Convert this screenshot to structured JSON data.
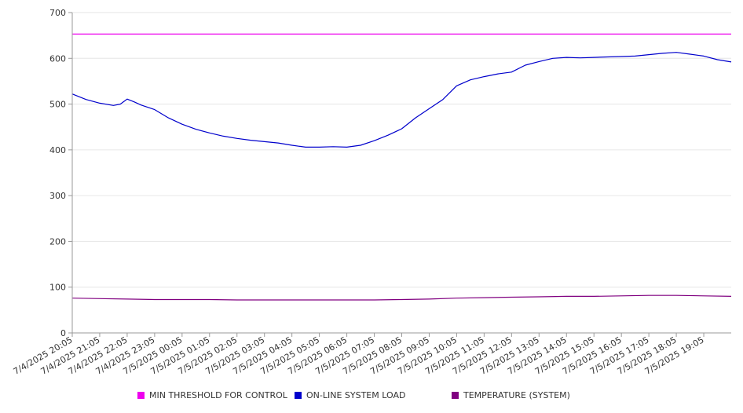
{
  "chart_data": {
    "type": "line",
    "ylim": [
      0,
      700
    ],
    "yticks": [
      0,
      100,
      200,
      300,
      400,
      500,
      600,
      700
    ],
    "grid": true,
    "legend_position": "bottom",
    "x_tick_labels": [
      "7/4/2025 20:05",
      "7/4/2025 21:05",
      "7/4/2025 22:05",
      "7/4/2025 23:05",
      "7/5/2025 00:05",
      "7/5/2025 01:05",
      "7/5/2025 02:05",
      "7/5/2025 03:05",
      "7/5/2025 04:05",
      "7/5/2025 05:05",
      "7/5/2025 06:05",
      "7/5/2025 07:05",
      "7/5/2025 08:05",
      "7/5/2025 09:05",
      "7/5/2025 10:05",
      "7/5/2025 11:05",
      "7/5/2025 12:05",
      "7/5/2025 13:05",
      "7/5/2025 14:05",
      "7/5/2025 15:05",
      "7/5/2025 16:05",
      "7/5/2025 17:05",
      "7/5/2025 18:05",
      "7/5/2025 19:05"
    ],
    "series": [
      {
        "name": "MIN THRESHOLD FOR CONTROL",
        "color": "#ee00ee",
        "x": [
          "7/4/2025 20:05",
          "7/5/2025 20:05"
        ],
        "values": [
          653,
          653
        ]
      },
      {
        "name": "ON-LINE SYSTEM LOAD",
        "color": "#0000cc",
        "x": [
          "7/4/2025 20:05",
          "7/4/2025 20:35",
          "7/4/2025 21:05",
          "7/4/2025 21:35",
          "7/4/2025 21:50",
          "7/4/2025 22:05",
          "7/4/2025 22:20",
          "7/4/2025 22:35",
          "7/4/2025 23:05",
          "7/4/2025 23:35",
          "7/5/2025 00:05",
          "7/5/2025 00:35",
          "7/5/2025 01:05",
          "7/5/2025 01:35",
          "7/5/2025 02:05",
          "7/5/2025 02:35",
          "7/5/2025 03:05",
          "7/5/2025 03:35",
          "7/5/2025 04:05",
          "7/5/2025 04:35",
          "7/5/2025 05:05",
          "7/5/2025 05:35",
          "7/5/2025 06:05",
          "7/5/2025 06:35",
          "7/5/2025 07:05",
          "7/5/2025 07:35",
          "7/5/2025 08:05",
          "7/5/2025 08:35",
          "7/5/2025 09:05",
          "7/5/2025 09:35",
          "7/5/2025 10:05",
          "7/5/2025 10:35",
          "7/5/2025 11:05",
          "7/5/2025 11:35",
          "7/5/2025 12:05",
          "7/5/2025 12:35",
          "7/5/2025 13:05",
          "7/5/2025 13:35",
          "7/5/2025 14:05",
          "7/5/2025 14:35",
          "7/5/2025 15:05",
          "7/5/2025 15:35",
          "7/5/2025 16:05",
          "7/5/2025 16:35",
          "7/5/2025 17:05",
          "7/5/2025 17:35",
          "7/5/2025 18:05",
          "7/5/2025 18:35",
          "7/5/2025 19:05",
          "7/5/2025 19:35",
          "7/5/2025 20:05"
        ],
        "values": [
          522,
          510,
          502,
          497,
          500,
          511,
          505,
          498,
          488,
          470,
          456,
          445,
          437,
          430,
          425,
          421,
          418,
          415,
          410,
          406,
          406,
          407,
          406,
          410,
          420,
          432,
          446,
          470,
          490,
          510,
          540,
          553,
          560,
          566,
          570,
          585,
          593,
          600,
          602,
          601,
          602,
          603,
          604,
          605,
          608,
          611,
          613,
          609,
          605,
          597,
          592
        ]
      },
      {
        "name": "TEMPERATURE (SYSTEM)",
        "color": "#800080",
        "x": [
          "7/4/2025 20:05",
          "7/4/2025 21:05",
          "7/4/2025 22:05",
          "7/4/2025 23:05",
          "7/5/2025 00:05",
          "7/5/2025 01:05",
          "7/5/2025 02:05",
          "7/5/2025 03:05",
          "7/5/2025 04:05",
          "7/5/2025 05:05",
          "7/5/2025 06:05",
          "7/5/2025 07:05",
          "7/5/2025 08:05",
          "7/5/2025 09:05",
          "7/5/2025 10:05",
          "7/5/2025 11:05",
          "7/5/2025 12:05",
          "7/5/2025 13:05",
          "7/5/2025 14:05",
          "7/5/2025 15:05",
          "7/5/2025 16:05",
          "7/5/2025 17:05",
          "7/5/2025 18:05",
          "7/5/2025 19:05",
          "7/5/2025 20:05"
        ],
        "values": [
          76,
          75,
          74,
          73,
          73,
          73,
          72,
          72,
          72,
          72,
          72,
          72,
          73,
          74,
          76,
          77,
          78,
          79,
          80,
          80,
          81,
          82,
          82,
          81,
          80
        ]
      }
    ]
  },
  "legend": {
    "items": [
      {
        "label": "MIN THRESHOLD FOR CONTROL",
        "color": "#ee00ee"
      },
      {
        "label": "ON-LINE SYSTEM LOAD",
        "color": "#0000cc"
      },
      {
        "label": "TEMPERATURE (SYSTEM)",
        "color": "#800080"
      }
    ]
  },
  "colors": {
    "grid": "#e6e6e6",
    "axis": "#999999",
    "text": "#333333"
  }
}
